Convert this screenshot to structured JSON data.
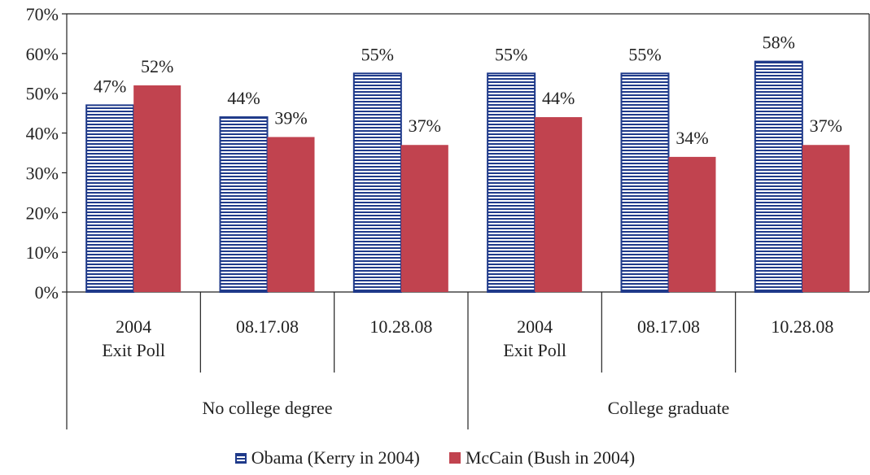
{
  "chart_data": {
    "type": "bar",
    "ylim": [
      0,
      70
    ],
    "yticks": [
      "0%",
      "10%",
      "20%",
      "30%",
      "40%",
      "50%",
      "60%",
      "70%"
    ],
    "categories": [
      [
        "2004",
        "Exit Poll"
      ],
      [
        "08.17.08"
      ],
      [
        "10.28.08"
      ],
      [
        "2004",
        "Exit Poll"
      ],
      [
        "08.17.08"
      ],
      [
        "10.28.08"
      ]
    ],
    "groups": [
      {
        "label": "No college degree",
        "span": [
          0,
          3
        ]
      },
      {
        "label": "College graduate",
        "span": [
          3,
          6
        ]
      }
    ],
    "series": [
      {
        "name": "Obama (Kerry in 2004)",
        "color": "#1f3a8a",
        "pattern": "horizontal-stripes",
        "values": [
          47,
          44,
          55,
          55,
          55,
          58
        ],
        "labels": [
          "47%",
          "44%",
          "55%",
          "55%",
          "55%",
          "58%"
        ]
      },
      {
        "name": "McCain (Bush in 2004)",
        "color": "#c1434f",
        "pattern": "solid",
        "values": [
          52,
          39,
          37,
          44,
          34,
          37
        ],
        "labels": [
          "52%",
          "39%",
          "37%",
          "44%",
          "34%",
          "37%"
        ]
      }
    ],
    "grid": false,
    "legend": "bottom"
  }
}
